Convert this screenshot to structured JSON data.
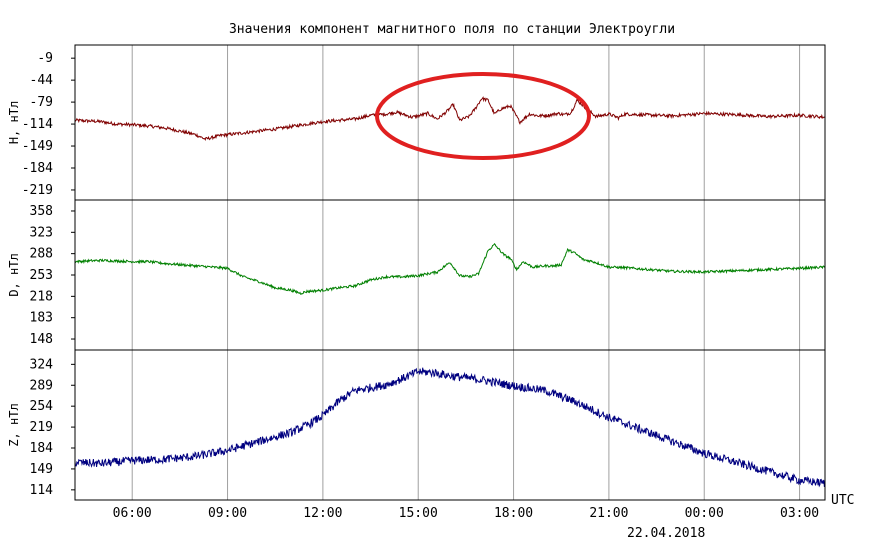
{
  "chart_data": {
    "type": "line",
    "title": "Значения компонент магнитного поля по станции Электроугли",
    "x_unit_label": "UTC",
    "date_label": "22.04.2018",
    "x_ticks": [
      "06:00",
      "09:00",
      "12:00",
      "15:00",
      "18:00",
      "21:00",
      "00:00",
      "03:00"
    ],
    "x_range_hours": [
      4.2,
      27.8
    ],
    "panels": [
      {
        "name": "H, нТл",
        "color": "#800000",
        "yticks": [
          -9,
          -44,
          -79,
          -114,
          -149,
          -184,
          -219
        ],
        "ylim": [
          -235,
          12
        ],
        "noise": 2.5,
        "x": [
          4.2,
          5,
          5.5,
          6,
          6.5,
          7,
          7.5,
          8,
          8.3,
          8.8,
          9.5,
          10,
          10.5,
          11,
          11.5,
          12,
          12.5,
          13,
          13.5,
          14,
          14.3,
          14.5,
          14.8,
          15,
          15.3,
          15.6,
          15.9,
          16.1,
          16.3,
          16.6,
          16.8,
          17,
          17.2,
          17.4,
          17.6,
          17.9,
          18.2,
          18.5,
          18.8,
          19.1,
          19.4,
          19.6,
          19.8,
          20,
          20.2,
          20.4,
          20.6,
          21,
          21.3,
          21.5,
          22,
          23,
          24,
          25,
          26,
          27,
          27.8
        ],
        "y": [
          -108,
          -110,
          -114,
          -115,
          -117,
          -120,
          -125,
          -131,
          -138,
          -132,
          -128,
          -125,
          -122,
          -118,
          -114,
          -110,
          -108,
          -106,
          -100,
          -98,
          -95,
          -98,
          -103,
          -101,
          -97,
          -106,
          -94,
          -83,
          -108,
          -102,
          -89,
          -73,
          -76,
          -98,
          -90,
          -85,
          -111,
          -98,
          -101,
          -100,
          -97,
          -99,
          -96,
          -76,
          -85,
          -94,
          -102,
          -98,
          -104,
          -98,
          -99,
          -101,
          -97,
          -99,
          -102,
          -100,
          -103
        ]
      },
      {
        "name": "D, нТл",
        "color": "#008000",
        "yticks": [
          358,
          323,
          288,
          253,
          218,
          183,
          148
        ],
        "ylim": [
          130,
          376
        ],
        "noise": 2,
        "x": [
          4.2,
          5,
          6,
          6.5,
          7,
          8,
          9,
          9.5,
          10,
          10.5,
          11,
          11.3,
          11.5,
          12,
          12.5,
          13,
          13.5,
          14,
          14.5,
          15,
          15.3,
          15.6,
          16,
          16.3,
          16.6,
          16.9,
          17.2,
          17.4,
          17.7,
          17.9,
          18.1,
          18.3,
          18.6,
          19,
          19.3,
          19.5,
          19.7,
          19.9,
          20.2,
          20.5,
          21,
          21.5,
          22,
          23,
          24,
          25,
          26,
          27,
          27.8
        ],
        "y": [
          275,
          277,
          275,
          275,
          272,
          268,
          264,
          250,
          242,
          232,
          228,
          223,
          226,
          228,
          232,
          235,
          245,
          250,
          250,
          252,
          255,
          258,
          274,
          252,
          250,
          255,
          293,
          303,
          286,
          280,
          262,
          275,
          266,
          268,
          268,
          270,
          294,
          290,
          278,
          275,
          266,
          265,
          263,
          259,
          258,
          260,
          262,
          264,
          266
        ]
      },
      {
        "name": "Z, нТл",
        "color": "#000080",
        "yticks": [
          324,
          289,
          254,
          219,
          184,
          149,
          114
        ],
        "ylim": [
          97,
          348
        ],
        "noise": 7,
        "x": [
          4.2,
          5,
          6,
          7,
          8,
          9,
          10,
          11,
          11.5,
          12,
          12.5,
          13,
          14,
          14.5,
          15,
          15.5,
          16,
          17,
          18,
          19,
          20,
          21,
          22,
          23,
          24,
          25,
          26,
          27,
          27.8
        ],
        "y": [
          160,
          158,
          163,
          165,
          170,
          180,
          195,
          210,
          222,
          238,
          262,
          280,
          290,
          300,
          312,
          310,
          305,
          298,
          288,
          280,
          260,
          235,
          215,
          195,
          175,
          160,
          145,
          130,
          125
        ]
      }
    ]
  }
}
